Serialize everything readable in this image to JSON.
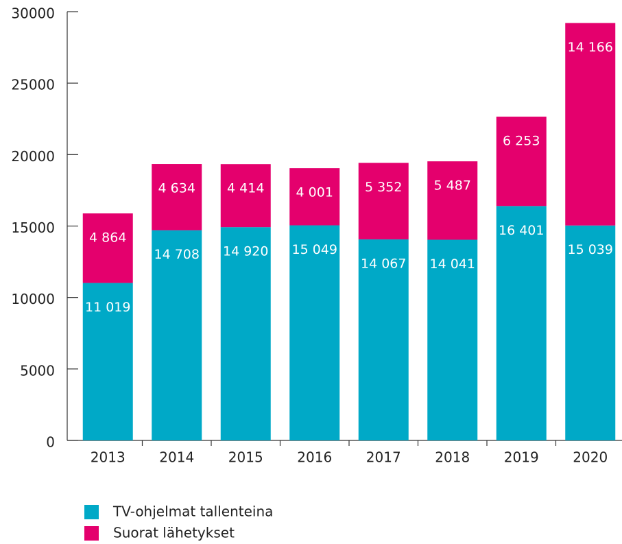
{
  "chart_data": {
    "type": "bar",
    "stacked": true,
    "categories": [
      "2013",
      "2014",
      "2015",
      "2016",
      "2017",
      "2018",
      "2019",
      "2020"
    ],
    "series": [
      {
        "name": "TV-ohjelmat tallenteina",
        "color": "#00a9c7",
        "values": [
          11019,
          14708,
          14920,
          15049,
          14067,
          14041,
          16401,
          15039
        ],
        "value_labels": [
          "11 019",
          "14 708",
          "14 920",
          "15 049",
          "14 067",
          "14 041",
          "16 401",
          "15 039"
        ]
      },
      {
        "name": "Suorat lähetykset",
        "color": "#e4006d",
        "values": [
          4864,
          4634,
          4414,
          4001,
          5352,
          5487,
          6253,
          14166
        ],
        "value_labels": [
          "4 864",
          "4 634",
          "4 414",
          "4 001",
          "5 352",
          "5 487",
          "6 253",
          "14 166"
        ]
      }
    ],
    "ylim": [
      0,
      30000
    ],
    "yticks": [
      0,
      5000,
      10000,
      15000,
      20000,
      25000,
      30000
    ]
  }
}
